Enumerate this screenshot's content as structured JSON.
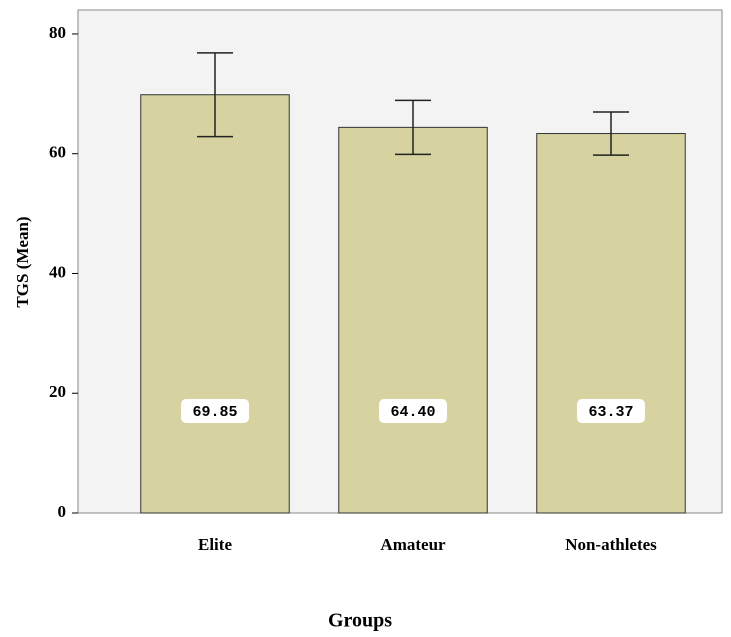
{
  "chart_data": {
    "type": "bar",
    "x_label": "Groups",
    "y_label": "TGS (Mean)",
    "categories": [
      "Elite",
      "Amateur",
      "Non-athletes"
    ],
    "values": [
      69.85,
      64.4,
      63.37
    ],
    "value_labels": [
      "69.85",
      "64.40",
      "63.37"
    ],
    "errors": [
      7,
      4.5,
      3.6
    ],
    "color": "#d6d3a0",
    "ylim": [
      0,
      84
    ],
    "yticks": [
      0,
      20,
      40,
      60,
      80
    ]
  }
}
